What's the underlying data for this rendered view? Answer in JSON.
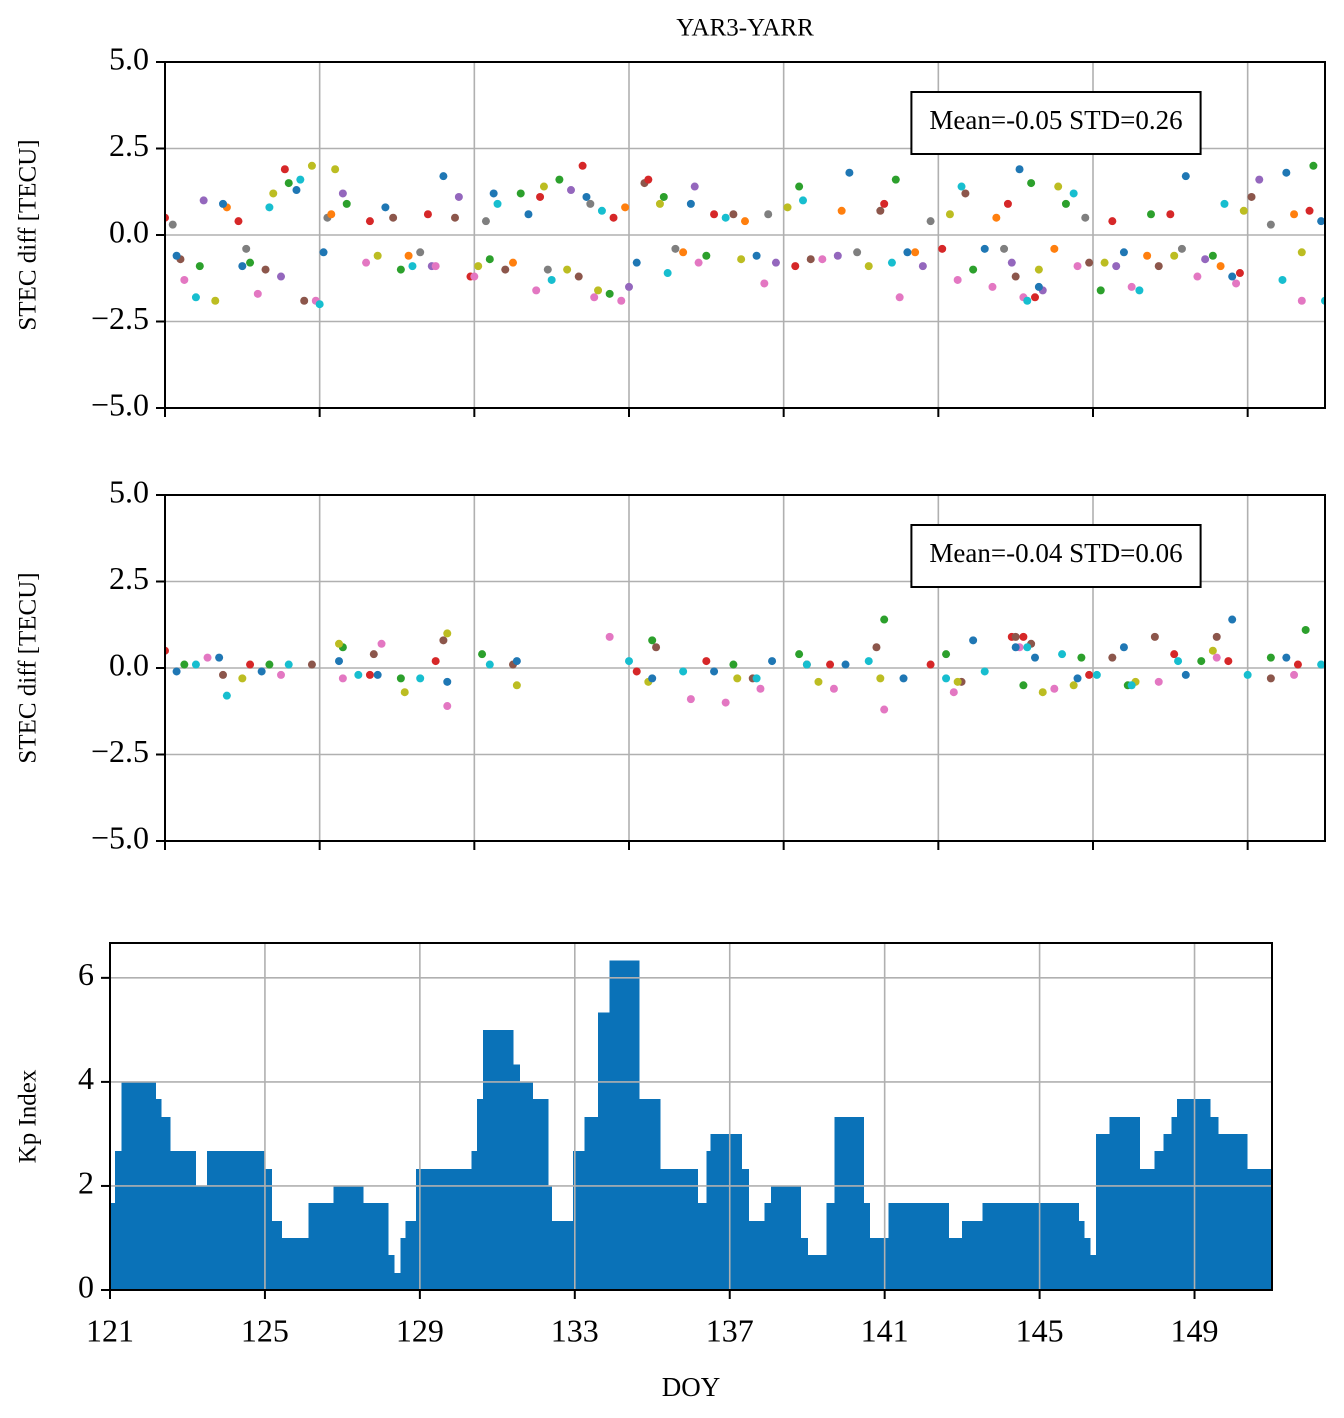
{
  "chart_data": [
    {
      "type": "scatter",
      "title": "YAR3-YARR",
      "ylabel": "STEC diff [TECU]",
      "annotation": "Mean=-0.05 STD=0.26",
      "xlim": [
        121,
        151
      ],
      "xticks": [
        121,
        125,
        129,
        133,
        137,
        141,
        145,
        149
      ],
      "xtick_labels": false,
      "ylim": [
        -5,
        5
      ],
      "yticks": [
        {
          "value": -5,
          "label": "−5.0"
        },
        {
          "value": -2.5,
          "label": "−2.5"
        },
        {
          "value": 0,
          "label": "0.0"
        },
        {
          "value": 2.5,
          "label": "2.5"
        },
        {
          "value": 5,
          "label": "5.0"
        }
      ],
      "grid": true,
      "series": [
        {
          "color": "#7f7f7f",
          "x": [
            121.2,
            123.1,
            125.2,
            127.6,
            129.3,
            130.9,
            132.0,
            134.2,
            136.6,
            138.9,
            140.8,
            142.7,
            144.8,
            147.3,
            149.6
          ],
          "values": [
            0.3,
            -0.4,
            0.5,
            -0.5,
            0.4,
            -1.0,
            0.9,
            -0.4,
            0.6,
            -0.5,
            0.4,
            -0.4,
            0.5,
            -0.4,
            0.3
          ]
        },
        {
          "color": "#ff7f0e",
          "x": [
            122.6,
            125.3,
            127.3,
            130.0,
            132.9,
            134.4,
            136.0,
            138.5,
            140.4,
            142.5,
            144.0,
            146.4,
            148.3,
            150.2
          ],
          "values": [
            0.8,
            0.6,
            -0.6,
            -0.8,
            0.8,
            -0.5,
            0.4,
            0.7,
            -0.5,
            0.5,
            -0.4,
            -0.6,
            -0.9,
            0.6
          ]
        },
        {
          "color": "#8c564b",
          "x": [
            121.4,
            123.6,
            124.6,
            126.9,
            128.5,
            129.8,
            131.7,
            133.4,
            135.7,
            137.7,
            139.5,
            141.7,
            143.0,
            144.9,
            146.7,
            149.1
          ],
          "values": [
            -0.7,
            -1.0,
            -1.9,
            0.5,
            0.5,
            -1.0,
            -1.2,
            1.5,
            0.6,
            -0.7,
            0.7,
            1.2,
            -1.2,
            -0.8,
            -0.9,
            1.1
          ]
        },
        {
          "color": "#9467bd",
          "x": [
            122.0,
            124.0,
            125.6,
            127.9,
            128.6,
            131.5,
            133.0,
            134.7,
            136.8,
            138.4,
            140.6,
            142.9,
            143.7,
            145.6,
            147.9,
            149.3
          ],
          "values": [
            1.0,
            -1.2,
            1.2,
            -0.9,
            1.1,
            1.3,
            -1.5,
            1.4,
            -0.8,
            -0.6,
            -0.9,
            -0.8,
            -1.6,
            -0.9,
            -0.7,
            1.6
          ]
        },
        {
          "color": "#2ca02c",
          "x": [
            121.9,
            123.2,
            124.2,
            125.7,
            127.1,
            129.4,
            130.2,
            131.2,
            132.5,
            133.9,
            135.0,
            137.4,
            139.9,
            141.9,
            143.4,
            144.3,
            145.2,
            146.5,
            148.1,
            150.7
          ],
          "values": [
            -0.9,
            -0.8,
            1.5,
            0.9,
            -1.0,
            -0.7,
            1.2,
            1.6,
            -1.7,
            1.1,
            -0.6,
            1.4,
            1.6,
            -1.0,
            1.5,
            0.9,
            -1.6,
            0.6,
            -0.6,
            2.0
          ]
        },
        {
          "color": "#d62728",
          "x": [
            121.0,
            122.9,
            124.1,
            126.3,
            127.8,
            128.9,
            130.7,
            131.8,
            132.6,
            133.5,
            135.2,
            137.3,
            139.6,
            141.1,
            142.8,
            143.5,
            145.5,
            147.0,
            148.8,
            150.6
          ],
          "values": [
            0.5,
            0.4,
            1.9,
            0.4,
            0.6,
            -1.2,
            1.1,
            2.0,
            0.5,
            1.6,
            0.6,
            -0.9,
            0.9,
            -0.4,
            0.9,
            -1.8,
            0.4,
            0.6,
            -1.1,
            0.7
          ]
        },
        {
          "color": "#e377c2",
          "x": [
            121.5,
            123.4,
            124.9,
            126.2,
            128.0,
            129.0,
            130.6,
            132.1,
            132.8,
            134.8,
            136.5,
            138.0,
            140.0,
            141.5,
            142.4,
            143.2,
            144.6,
            146.0,
            147.7,
            148.7,
            150.4
          ],
          "values": [
            -1.3,
            -1.7,
            -1.9,
            -0.8,
            -0.9,
            -1.2,
            -1.6,
            -1.8,
            -1.9,
            -0.8,
            -1.4,
            -0.7,
            -1.8,
            -1.3,
            -1.5,
            -1.8,
            -0.9,
            -1.5,
            -1.2,
            -1.4,
            -1.9
          ]
        },
        {
          "color": "#bcbd22",
          "x": [
            122.3,
            123.8,
            124.8,
            125.4,
            126.5,
            129.1,
            130.8,
            131.4,
            132.2,
            133.8,
            135.9,
            137.1,
            139.2,
            141.3,
            143.6,
            144.1,
            145.3,
            147.1,
            148.9,
            150.4
          ],
          "values": [
            -1.9,
            1.2,
            2.0,
            1.9,
            -0.6,
            -0.9,
            1.4,
            -1.0,
            -1.6,
            0.9,
            -0.7,
            0.8,
            -0.9,
            0.6,
            -1.0,
            1.4,
            -0.8,
            -0.6,
            0.7,
            -0.5
          ]
        },
        {
          "color": "#17becf",
          "x": [
            121.8,
            123.7,
            124.5,
            125.0,
            127.4,
            129.6,
            131.0,
            132.3,
            134.0,
            135.5,
            137.5,
            139.8,
            141.6,
            143.3,
            144.5,
            146.2,
            148.4,
            149.9,
            151.0
          ],
          "values": [
            -1.8,
            0.8,
            1.6,
            -2.0,
            -0.9,
            0.9,
            -1.3,
            0.7,
            -1.1,
            0.5,
            1.0,
            -0.8,
            1.4,
            -1.9,
            1.2,
            -1.6,
            0.9,
            -1.3,
            -1.9
          ]
        },
        {
          "color": "#1f77b4",
          "x": [
            121.3,
            122.5,
            123.0,
            124.4,
            125.1,
            126.7,
            128.2,
            129.5,
            130.4,
            131.9,
            133.2,
            134.6,
            136.3,
            138.7,
            140.2,
            142.2,
            143.1,
            143.6,
            145.8,
            147.4,
            148.6,
            150.0,
            150.9
          ],
          "values": [
            -0.6,
            0.9,
            -0.9,
            1.3,
            -0.5,
            0.8,
            1.7,
            1.2,
            0.6,
            1.1,
            -0.8,
            0.9,
            -0.6,
            1.8,
            -0.5,
            -0.4,
            1.9,
            -1.5,
            -0.5,
            1.7,
            -1.2,
            1.8,
            0.4
          ]
        }
      ]
    },
    {
      "type": "scatter",
      "ylabel": "STEC diff [TECU]",
      "annotation": "Mean=-0.04 STD=0.06",
      "xlim": [
        121,
        151
      ],
      "xticks": [
        121,
        125,
        129,
        133,
        137,
        141,
        145,
        149
      ],
      "xtick_labels": false,
      "ylim": [
        -5,
        5
      ],
      "yticks": [
        {
          "value": -5,
          "label": "−5.0"
        },
        {
          "value": -2.5,
          "label": "−2.5"
        },
        {
          "value": 0,
          "label": "0.0"
        },
        {
          "value": 2.5,
          "label": "2.5"
        },
        {
          "value": 5,
          "label": "5.0"
        }
      ],
      "grid": true,
      "series": [
        {
          "color": "#d62728",
          "x": [
            121.0,
            123.2,
            126.3,
            128.0,
            133.2,
            135.0,
            138.2,
            140.8,
            142.9,
            143.2,
            144.9,
            147.1,
            148.5,
            150.3
          ],
          "values": [
            0.5,
            0.1,
            -0.2,
            0.2,
            -0.1,
            0.2,
            0.1,
            0.1,
            0.9,
            0.9,
            -0.2,
            0.4,
            0.2,
            0.1
          ]
        },
        {
          "color": "#8c564b",
          "x": [
            122.5,
            124.8,
            126.4,
            128.2,
            130.0,
            133.7,
            136.2,
            137.6,
            139.4,
            141.6,
            143.0,
            143.4,
            145.5,
            146.6,
            148.2,
            149.6
          ],
          "values": [
            -0.2,
            0.1,
            0.4,
            0.8,
            0.1,
            0.6,
            -0.3,
            0.1,
            0.6,
            -0.4,
            0.9,
            0.7,
            0.3,
            0.9,
            0.9,
            -0.3
          ]
        },
        {
          "color": "#2ca02c",
          "x": [
            121.5,
            123.7,
            125.6,
            127.1,
            129.2,
            133.6,
            135.7,
            137.4,
            139.6,
            141.2,
            143.2,
            144.7,
            145.9,
            147.8,
            149.6,
            150.5
          ],
          "values": [
            0.1,
            0.1,
            0.6,
            -0.3,
            0.4,
            0.8,
            0.1,
            0.4,
            1.4,
            0.4,
            -0.5,
            0.3,
            -0.5,
            0.2,
            0.3,
            1.1
          ]
        },
        {
          "color": "#e377c2",
          "x": [
            122.1,
            124.0,
            125.6,
            126.6,
            128.3,
            132.5,
            134.6,
            135.5,
            136.4,
            138.3,
            139.6,
            141.4,
            143.1,
            144.0,
            146.7,
            148.2,
            150.2
          ],
          "values": [
            0.3,
            -0.2,
            -0.3,
            0.7,
            -1.1,
            0.9,
            -0.9,
            -1.0,
            -0.6,
            -0.6,
            -1.2,
            -0.7,
            0.6,
            -0.6,
            -0.4,
            0.3,
            -0.2
          ]
        },
        {
          "color": "#bcbd22",
          "x": [
            123.0,
            125.5,
            127.2,
            128.3,
            130.1,
            133.5,
            135.8,
            137.9,
            139.5,
            141.5,
            143.7,
            144.5,
            146.1,
            148.1
          ],
          "values": [
            -0.3,
            0.7,
            -0.7,
            1.0,
            -0.5,
            -0.4,
            -0.3,
            -0.4,
            -0.3,
            -0.4,
            -0.7,
            -0.5,
            -0.4,
            0.5
          ]
        },
        {
          "color": "#17becf",
          "x": [
            121.8,
            122.6,
            124.2,
            126.0,
            127.6,
            129.4,
            133.0,
            134.4,
            136.3,
            137.6,
            139.2,
            141.2,
            142.2,
            143.3,
            144.2,
            145.1,
            146.0,
            147.2,
            149.0,
            150.9
          ],
          "values": [
            0.1,
            -0.8,
            0.1,
            -0.2,
            -0.3,
            0.1,
            0.2,
            -0.1,
            -0.3,
            0.1,
            0.2,
            -0.3,
            -0.1,
            0.6,
            0.4,
            -0.2,
            -0.5,
            0.2,
            -0.2,
            0.1
          ]
        },
        {
          "color": "#1f77b4",
          "x": [
            121.3,
            122.4,
            123.5,
            125.5,
            126.5,
            128.3,
            130.1,
            133.6,
            135.2,
            136.7,
            138.6,
            140.1,
            141.9,
            143.0,
            143.5,
            144.6,
            145.8,
            147.4,
            148.6,
            150.0
          ],
          "values": [
            -0.1,
            0.3,
            -0.1,
            0.2,
            -0.2,
            -0.4,
            0.2,
            -0.3,
            -0.1,
            0.2,
            0.1,
            -0.3,
            0.8,
            0.6,
            0.3,
            -0.3,
            0.6,
            -0.2,
            1.4,
            0.3
          ]
        }
      ]
    },
    {
      "type": "histogram",
      "ylabel": "Kp Index",
      "xlabel": "DOY",
      "color": "#0a72b8",
      "xlim": [
        121,
        151
      ],
      "xticks": [
        121,
        125,
        129,
        133,
        137,
        141,
        145,
        149
      ],
      "xtick_labels": true,
      "ylim": [
        0,
        6.67
      ],
      "yticks": [
        0,
        2,
        4,
        6
      ],
      "grid": true,
      "bins": [
        121,
        121.13,
        121.3,
        122.17,
        122.32,
        122.55,
        123.2,
        123.5,
        125.0,
        125.17,
        125.42,
        126.13,
        126.77,
        127.53,
        128.17,
        128.33,
        128.5,
        128.63,
        128.9,
        130.33,
        130.48,
        130.63,
        131.4,
        131.57,
        131.9,
        132.3,
        132.4,
        132.95,
        133.25,
        133.6,
        133.9,
        134.65,
        135.2,
        136.17,
        136.4,
        136.5,
        137.3,
        137.48,
        137.9,
        138.07,
        138.83,
        139.0,
        139.5,
        139.7,
        140.45,
        140.6,
        141.1,
        142.65,
        143.0,
        143.53,
        145.18,
        146.0,
        146.15,
        146.3,
        146.45,
        146.8,
        147.58,
        147.97,
        148.2,
        148.4,
        148.55,
        149.4,
        149.6,
        150.35,
        151.0
      ],
      "values": [
        1.67,
        2.67,
        4.0,
        3.67,
        3.33,
        2.67,
        2.0,
        2.67,
        2.33,
        1.33,
        1.0,
        1.67,
        2.0,
        1.67,
        0.67,
        0.33,
        1.0,
        1.33,
        2.33,
        2.67,
        3.67,
        5.0,
        4.33,
        4.0,
        3.67,
        2.0,
        1.33,
        2.67,
        3.33,
        5.33,
        6.33,
        3.67,
        2.33,
        1.67,
        2.67,
        3.0,
        2.33,
        1.33,
        1.67,
        2.0,
        1.0,
        0.67,
        1.67,
        3.33,
        1.67,
        1.0,
        1.67,
        1.0,
        1.33,
        1.67,
        1.67,
        1.33,
        1.0,
        0.67,
        3.0,
        3.33,
        2.33,
        2.67,
        3.0,
        3.33,
        3.67,
        3.33,
        3.0,
        2.33
      ]
    }
  ]
}
